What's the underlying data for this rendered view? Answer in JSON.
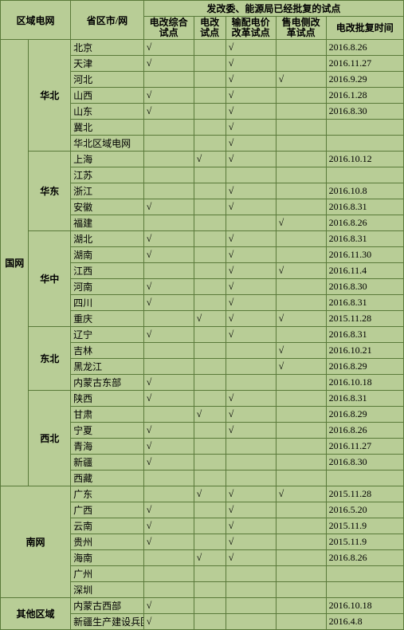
{
  "headers": {
    "region_grid": "区域电网",
    "province": "省区市/网",
    "pilot_group": "发改委、能源局已经批复的试点",
    "col1": "电改综合试点",
    "col2": "电改试点",
    "col3": "输配电价改革试点",
    "col4": "售电侧改革试点",
    "col5": "电改批复时间"
  },
  "check": "√",
  "groups": [
    {
      "grid": "国网",
      "regions": [
        {
          "name": "华北",
          "rows": [
            {
              "prov": "北京",
              "c1": "√",
              "c2": "",
              "c3": "√",
              "c4": "",
              "date": "2016.8.26"
            },
            {
              "prov": "天津",
              "c1": "√",
              "c2": "",
              "c3": "√",
              "c4": "",
              "date": "2016.11.27"
            },
            {
              "prov": "河北",
              "c1": "",
              "c2": "",
              "c3": "√",
              "c4": "√",
              "date": "2016.9.29"
            },
            {
              "prov": "山西",
              "c1": "√",
              "c2": "",
              "c3": "√",
              "c4": "",
              "date": "2016.1.28"
            },
            {
              "prov": "山东",
              "c1": "√",
              "c2": "",
              "c3": "√",
              "c4": "",
              "date": "2016.8.30"
            },
            {
              "prov": "冀北",
              "c1": "",
              "c2": "",
              "c3": "√",
              "c4": "",
              "date": ""
            },
            {
              "prov": "华北区域电网",
              "c1": "",
              "c2": "",
              "c3": "√",
              "c4": "",
              "date": ""
            }
          ]
        },
        {
          "name": "华东",
          "rows": [
            {
              "prov": "上海",
              "c1": "",
              "c2": "√",
              "c3": "√",
              "c4": "",
              "date": "2016.10.12"
            },
            {
              "prov": "江苏",
              "c1": "",
              "c2": "",
              "c3": "",
              "c4": "",
              "date": ""
            },
            {
              "prov": "浙江",
              "c1": "",
              "c2": "",
              "c3": "√",
              "c4": "",
              "date": "2016.10.8"
            },
            {
              "prov": "安徽",
              "c1": "√",
              "c2": "",
              "c3": "√",
              "c4": "",
              "date": "2016.8.31"
            },
            {
              "prov": "福建",
              "c1": "",
              "c2": "",
              "c3": "",
              "c4": "√",
              "date": "2016.8.26"
            }
          ]
        },
        {
          "name": "华中",
          "rows": [
            {
              "prov": "湖北",
              "c1": "√",
              "c2": "",
              "c3": "√",
              "c4": "",
              "date": "2016.8.31"
            },
            {
              "prov": "湖南",
              "c1": "√",
              "c2": "",
              "c3": "√",
              "c4": "",
              "date": "2016.11.30"
            },
            {
              "prov": "江西",
              "c1": "",
              "c2": "",
              "c3": "√",
              "c4": "√",
              "date": "2016.11.4"
            },
            {
              "prov": "河南",
              "c1": "√",
              "c2": "",
              "c3": "√",
              "c4": "",
              "date": "2016.8.30"
            },
            {
              "prov": "四川",
              "c1": "√",
              "c2": "",
              "c3": "√",
              "c4": "",
              "date": "2016.8.31"
            },
            {
              "prov": "重庆",
              "c1": "",
              "c2": "√",
              "c3": "√",
              "c4": "√",
              "date": "2015.11.28"
            }
          ]
        },
        {
          "name": "东北",
          "rows": [
            {
              "prov": "辽宁",
              "c1": "√",
              "c2": "",
              "c3": "√",
              "c4": "",
              "date": "2016.8.31"
            },
            {
              "prov": "吉林",
              "c1": "",
              "c2": "",
              "c3": "",
              "c4": "√",
              "date": "2016.10.21"
            },
            {
              "prov": "黑龙江",
              "c1": "",
              "c2": "",
              "c3": "",
              "c4": "√",
              "date": "2016.8.29"
            },
            {
              "prov": "内蒙古东部",
              "c1": "√",
              "c2": "",
              "c3": "",
              "c4": "",
              "date": "2016.10.18"
            }
          ]
        },
        {
          "name": "西北",
          "rows": [
            {
              "prov": "陕西",
              "c1": "√",
              "c2": "",
              "c3": "√",
              "c4": "",
              "date": "2016.8.31"
            },
            {
              "prov": "甘肃",
              "c1": "",
              "c2": "√",
              "c3": "√",
              "c4": "",
              "date": "2016.8.29"
            },
            {
              "prov": "宁夏",
              "c1": "√",
              "c2": "",
              "c3": "√",
              "c4": "",
              "date": "2016.8.26"
            },
            {
              "prov": "青海",
              "c1": "√",
              "c2": "",
              "c3": "",
              "c4": "",
              "date": "2016.11.27"
            },
            {
              "prov": "新疆",
              "c1": "√",
              "c2": "",
              "c3": "",
              "c4": "",
              "date": "2016.8.30"
            },
            {
              "prov": "西藏",
              "c1": "",
              "c2": "",
              "c3": "",
              "c4": "",
              "date": ""
            }
          ]
        }
      ]
    },
    {
      "grid": "南网",
      "regions": [
        {
          "name": "",
          "rows": [
            {
              "prov": "广东",
              "c1": "",
              "c2": "√",
              "c3": "√",
              "c4": "√",
              "date": "2015.11.28"
            },
            {
              "prov": "广西",
              "c1": "√",
              "c2": "",
              "c3": "√",
              "c4": "",
              "date": "2016.5.20"
            },
            {
              "prov": "云南",
              "c1": "√",
              "c2": "",
              "c3": "√",
              "c4": "",
              "date": "2015.11.9"
            },
            {
              "prov": "贵州",
              "c1": "√",
              "c2": "",
              "c3": "√",
              "c4": "",
              "date": "2015.11.9"
            },
            {
              "prov": "海南",
              "c1": "",
              "c2": "√",
              "c3": "√",
              "c4": "",
              "date": "2016.8.26"
            },
            {
              "prov": "广州",
              "c1": "",
              "c2": "",
              "c3": "",
              "c4": "",
              "date": ""
            },
            {
              "prov": "深圳",
              "c1": "",
              "c2": "",
              "c3": "",
              "c4": "",
              "date": ""
            }
          ]
        }
      ]
    },
    {
      "grid": "其他区域",
      "regions": [
        {
          "name": "",
          "rows": [
            {
              "prov": "内蒙古西部",
              "c1": "√",
              "c2": "",
              "c3": "",
              "c4": "",
              "date": "2016.10.18"
            },
            {
              "prov": "新疆生产建设兵团",
              "c1": "√",
              "c2": "",
              "c3": "",
              "c4": "",
              "date": "2016.4.8"
            }
          ]
        }
      ]
    }
  ]
}
